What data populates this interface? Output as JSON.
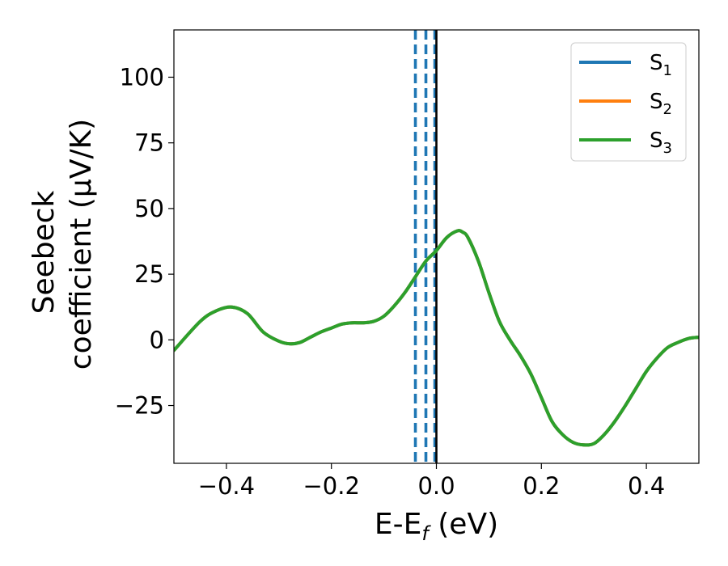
{
  "chart_data": {
    "type": "line",
    "xlabel_main": "E-E",
    "xlabel_sub": "f",
    "xlabel_unit": " (eV)",
    "ylabel_line1": "Seebeck",
    "ylabel_line2": "coefficient  (μV/K)",
    "xlim": [
      -0.5,
      0.5
    ],
    "ylim": [
      -47,
      118
    ],
    "x_ticks": [
      -0.4,
      -0.2,
      0.0,
      0.2,
      0.4
    ],
    "x_tick_labels": [
      "−0.4",
      "−0.2",
      "0.0",
      "0.2",
      "0.4"
    ],
    "y_ticks": [
      -25,
      0,
      25,
      50,
      75,
      100
    ],
    "y_tick_labels": [
      "−25",
      "0",
      "25",
      "50",
      "75",
      "100"
    ],
    "legend_position": "top-right",
    "series": [
      {
        "name": "S",
        "name_sub": "1",
        "color": "#1f77b4",
        "x": [
          -0.5,
          -0.45,
          -0.42,
          -0.39,
          -0.36,
          -0.33,
          -0.3,
          -0.28,
          -0.26,
          -0.24,
          -0.22,
          -0.2,
          -0.18,
          -0.16,
          -0.14,
          -0.12,
          -0.1,
          -0.08,
          -0.06,
          -0.04,
          -0.02,
          0.0,
          0.02,
          0.04,
          0.05,
          0.06,
          0.08,
          0.1,
          0.12,
          0.14,
          0.16,
          0.18,
          0.2,
          0.22,
          0.24,
          0.26,
          0.28,
          0.3,
          0.32,
          0.34,
          0.36,
          0.38,
          0.4,
          0.42,
          0.44,
          0.46,
          0.48,
          0.5
        ],
        "y": [
          -4,
          7,
          11,
          12.5,
          10,
          3,
          -0.5,
          -1.5,
          -1,
          1,
          3,
          4.5,
          6,
          6.5,
          6.5,
          7,
          9,
          13,
          18,
          24,
          30,
          34,
          39,
          41.5,
          41,
          39,
          30,
          18,
          7,
          0,
          -6,
          -13,
          -22,
          -31,
          -36,
          -39,
          -40,
          -39.5,
          -36,
          -31,
          -25,
          -18.5,
          -12,
          -7,
          -3,
          -1,
          0.5,
          1
        ]
      },
      {
        "name": "S",
        "name_sub": "2",
        "color": "#ff7f0e",
        "x": [
          -0.5,
          -0.45,
          -0.42,
          -0.39,
          -0.36,
          -0.33,
          -0.3,
          -0.28,
          -0.26,
          -0.24,
          -0.22,
          -0.2,
          -0.18,
          -0.16,
          -0.14,
          -0.12,
          -0.1,
          -0.08,
          -0.06,
          -0.04,
          -0.02,
          0.0,
          0.02,
          0.04,
          0.05,
          0.06,
          0.08,
          0.1,
          0.12,
          0.14,
          0.16,
          0.18,
          0.2,
          0.22,
          0.24,
          0.26,
          0.28,
          0.3,
          0.32,
          0.34,
          0.36,
          0.38,
          0.4,
          0.42,
          0.44,
          0.46,
          0.48,
          0.5
        ],
        "y": [
          -4,
          7,
          11,
          12.5,
          10,
          3,
          -0.5,
          -1.5,
          -1,
          1,
          3,
          4.5,
          6,
          6.5,
          6.5,
          7,
          9,
          13,
          18,
          24,
          30,
          34,
          39,
          41.5,
          41,
          39,
          30,
          18,
          7,
          0,
          -6,
          -13,
          -22,
          -31,
          -36,
          -39,
          -40,
          -39.5,
          -36,
          -31,
          -25,
          -18.5,
          -12,
          -7,
          -3,
          -1,
          0.5,
          1
        ]
      },
      {
        "name": "S",
        "name_sub": "3",
        "color": "#2ca02c",
        "x": [
          -0.5,
          -0.45,
          -0.42,
          -0.39,
          -0.36,
          -0.33,
          -0.3,
          -0.28,
          -0.26,
          -0.24,
          -0.22,
          -0.2,
          -0.18,
          -0.16,
          -0.14,
          -0.12,
          -0.1,
          -0.08,
          -0.06,
          -0.04,
          -0.02,
          0.0,
          0.02,
          0.04,
          0.05,
          0.06,
          0.08,
          0.1,
          0.12,
          0.14,
          0.16,
          0.18,
          0.2,
          0.22,
          0.24,
          0.26,
          0.28,
          0.3,
          0.32,
          0.34,
          0.36,
          0.38,
          0.4,
          0.42,
          0.44,
          0.46,
          0.48,
          0.5
        ],
        "y": [
          -4,
          7,
          11,
          12.5,
          10,
          3,
          -0.5,
          -1.5,
          -1,
          1,
          3,
          4.5,
          6,
          6.5,
          6.5,
          7,
          9,
          13,
          18,
          24,
          30,
          34,
          39,
          41.5,
          41,
          39,
          30,
          18,
          7,
          0,
          -6,
          -13,
          -22,
          -31,
          -36,
          -39,
          -40,
          -39.5,
          -36,
          -31,
          -25,
          -18.5,
          -12,
          -7,
          -3,
          -1,
          0.5,
          1
        ]
      }
    ],
    "vlines": [
      {
        "x": -0.04,
        "color": "#1f77b4",
        "style": "dashed"
      },
      {
        "x": -0.02,
        "color": "#1f77b4",
        "style": "dashed"
      },
      {
        "x": -0.003,
        "color": "#1f77b4",
        "style": "dashed"
      },
      {
        "x": 0.0,
        "color": "#000000",
        "style": "solid"
      }
    ]
  }
}
